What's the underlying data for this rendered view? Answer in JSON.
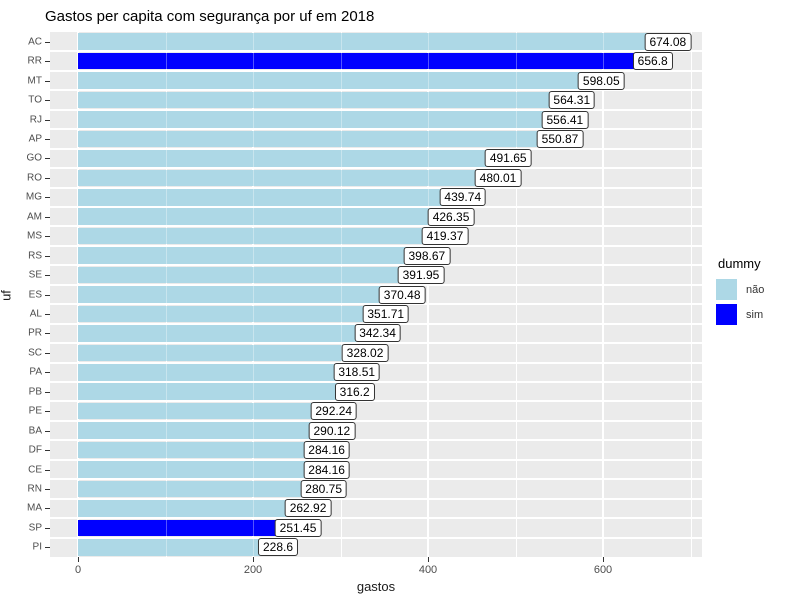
{
  "title": "Gastos per capita com segurança por uf em 2018",
  "axes": {
    "x_label": "gastos",
    "y_label": "uf",
    "x_ticks": [
      "0",
      "200",
      "400",
      "600"
    ],
    "x_minor_ticks": [
      100,
      300,
      500,
      700
    ]
  },
  "legend": {
    "title": "dummy",
    "items": [
      {
        "label": "não",
        "color": "#ADD8E6"
      },
      {
        "label": "sim",
        "color": "#0000FF"
      }
    ]
  },
  "colors": {
    "bar_nao": "#ADD8E6",
    "bar_sim": "#0000FF",
    "panel_bg": "#EBEBEB",
    "grid": "#FFFFFF",
    "tick_text": "#4d4d4d"
  },
  "chart_data": {
    "type": "bar",
    "orientation": "horizontal",
    "title": "Gastos per capita com segurança por uf em 2018",
    "xlabel": "gastos",
    "ylabel": "uf",
    "xlim": [
      -33,
      713
    ],
    "x_major_ticks": [
      0,
      200,
      400,
      600
    ],
    "grid": true,
    "legend_position": "right",
    "legend_title": "dummy",
    "categories": [
      "AC",
      "RR",
      "MT",
      "TO",
      "RJ",
      "AP",
      "GO",
      "RO",
      "MG",
      "AM",
      "MS",
      "RS",
      "SE",
      "ES",
      "AL",
      "PR",
      "SC",
      "PA",
      "PB",
      "PE",
      "BA",
      "DF",
      "CE",
      "RN",
      "MA",
      "SP",
      "PI"
    ],
    "values": [
      674.08,
      656.8,
      598.05,
      564.31,
      556.41,
      550.87,
      491.65,
      480.01,
      439.74,
      426.35,
      419.37,
      398.67,
      391.95,
      370.48,
      351.71,
      342.34,
      328.02,
      318.51,
      316.2,
      292.24,
      290.12,
      284.16,
      284.16,
      280.75,
      262.92,
      251.45,
      228.6
    ],
    "bar_labels": [
      "674.08",
      "656.8",
      "598.05",
      "564.31",
      "556.41",
      "550.87",
      "491.65",
      "480.01",
      "439.74",
      "426.35",
      "419.37",
      "398.67",
      "391.95",
      "370.48",
      "351.71",
      "342.34",
      "328.02",
      "318.51",
      "316.2",
      "292.24",
      "290.12",
      "284.16",
      "284.16",
      "280.75",
      "262.92",
      "251.45",
      "228.6"
    ],
    "dummy": [
      "não",
      "sim",
      "não",
      "não",
      "não",
      "não",
      "não",
      "não",
      "não",
      "não",
      "não",
      "não",
      "não",
      "não",
      "não",
      "não",
      "não",
      "não",
      "não",
      "não",
      "não",
      "não",
      "não",
      "não",
      "não",
      "sim",
      "não"
    ]
  }
}
